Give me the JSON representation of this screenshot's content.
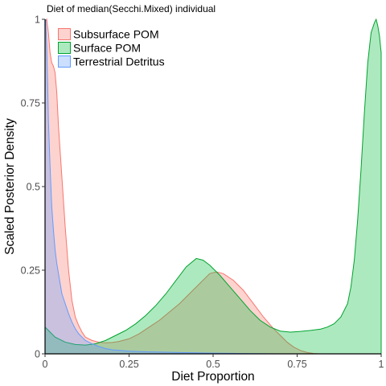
{
  "chart_data": {
    "type": "area",
    "title": "Diet of median(Secchi.Mixed) individual",
    "xlabel": "Diet Proportion",
    "ylabel": "Scaled Posterior Density",
    "xlim": [
      0,
      1
    ],
    "ylim": [
      0,
      1
    ],
    "x_ticks": [
      {
        "value": 0,
        "label": "0"
      },
      {
        "value": 0.25,
        "label": "0.25"
      },
      {
        "value": 0.5,
        "label": "0.5"
      },
      {
        "value": 0.75,
        "label": "0.75"
      },
      {
        "value": 1,
        "label": "1"
      }
    ],
    "y_ticks": [
      {
        "value": 0,
        "label": "0"
      },
      {
        "value": 0.25,
        "label": "0.25"
      },
      {
        "value": 0.5,
        "label": "0.5"
      },
      {
        "value": 0.75,
        "label": "0.75"
      },
      {
        "value": 1,
        "label": "1"
      }
    ],
    "grid": false,
    "legend_position": "top-left",
    "series": [
      {
        "name": "Subsurface POM",
        "fill": "#f8766d",
        "stroke": "#f8766d",
        "points": [
          [
            0,
            0.99
          ],
          [
            0.005,
            1.0
          ],
          [
            0.01,
            0.96
          ],
          [
            0.015,
            0.9
          ],
          [
            0.02,
            0.87
          ],
          [
            0.025,
            0.86
          ],
          [
            0.03,
            0.84
          ],
          [
            0.035,
            0.78
          ],
          [
            0.04,
            0.68
          ],
          [
            0.05,
            0.53
          ],
          [
            0.06,
            0.38
          ],
          [
            0.07,
            0.25
          ],
          [
            0.08,
            0.16
          ],
          [
            0.09,
            0.11
          ],
          [
            0.1,
            0.085
          ],
          [
            0.11,
            0.065
          ],
          [
            0.12,
            0.05
          ],
          [
            0.14,
            0.04
          ],
          [
            0.16,
            0.035
          ],
          [
            0.18,
            0.033
          ],
          [
            0.2,
            0.034
          ],
          [
            0.22,
            0.037
          ],
          [
            0.25,
            0.045
          ],
          [
            0.28,
            0.06
          ],
          [
            0.31,
            0.08
          ],
          [
            0.34,
            0.1
          ],
          [
            0.37,
            0.125
          ],
          [
            0.4,
            0.15
          ],
          [
            0.43,
            0.18
          ],
          [
            0.46,
            0.21
          ],
          [
            0.49,
            0.24
          ],
          [
            0.51,
            0.245
          ],
          [
            0.53,
            0.24
          ],
          [
            0.56,
            0.22
          ],
          [
            0.59,
            0.19
          ],
          [
            0.62,
            0.15
          ],
          [
            0.65,
            0.11
          ],
          [
            0.68,
            0.075
          ],
          [
            0.7,
            0.055
          ],
          [
            0.72,
            0.035
          ],
          [
            0.74,
            0.02
          ],
          [
            0.76,
            0.01
          ],
          [
            0.78,
            0.004
          ],
          [
            0.8,
            0.001
          ],
          [
            0.82,
            0
          ],
          [
            1,
            0
          ]
        ]
      },
      {
        "name": "Surface POM",
        "fill": "#00ba38",
        "stroke": "#00a32e",
        "points": [
          [
            0,
            0.08
          ],
          [
            0.03,
            0.05
          ],
          [
            0.06,
            0.035
          ],
          [
            0.09,
            0.028
          ],
          [
            0.12,
            0.026
          ],
          [
            0.15,
            0.03
          ],
          [
            0.18,
            0.04
          ],
          [
            0.21,
            0.055
          ],
          [
            0.24,
            0.07
          ],
          [
            0.27,
            0.09
          ],
          [
            0.3,
            0.115
          ],
          [
            0.33,
            0.145
          ],
          [
            0.36,
            0.18
          ],
          [
            0.39,
            0.22
          ],
          [
            0.42,
            0.26
          ],
          [
            0.45,
            0.285
          ],
          [
            0.47,
            0.28
          ],
          [
            0.49,
            0.265
          ],
          [
            0.52,
            0.235
          ],
          [
            0.55,
            0.2
          ],
          [
            0.58,
            0.165
          ],
          [
            0.61,
            0.13
          ],
          [
            0.64,
            0.1
          ],
          [
            0.67,
            0.08
          ],
          [
            0.7,
            0.068
          ],
          [
            0.73,
            0.065
          ],
          [
            0.76,
            0.067
          ],
          [
            0.79,
            0.07
          ],
          [
            0.82,
            0.074
          ],
          [
            0.84,
            0.08
          ],
          [
            0.86,
            0.09
          ],
          [
            0.88,
            0.11
          ],
          [
            0.9,
            0.15
          ],
          [
            0.91,
            0.2
          ],
          [
            0.92,
            0.28
          ],
          [
            0.93,
            0.4
          ],
          [
            0.94,
            0.55
          ],
          [
            0.95,
            0.72
          ],
          [
            0.96,
            0.87
          ],
          [
            0.97,
            0.96
          ],
          [
            0.98,
            0.99
          ],
          [
            0.985,
            1.0
          ],
          [
            0.99,
            0.98
          ],
          [
            0.995,
            0.95
          ],
          [
            1.0,
            0.9
          ]
        ]
      },
      {
        "name": "Terrestrial Detritus",
        "fill": "#619cff",
        "stroke": "#619cff",
        "points": [
          [
            0,
            0.98
          ],
          [
            0.002,
            1.0
          ],
          [
            0.005,
            0.92
          ],
          [
            0.008,
            0.8
          ],
          [
            0.01,
            0.7
          ],
          [
            0.015,
            0.56
          ],
          [
            0.02,
            0.44
          ],
          [
            0.025,
            0.37
          ],
          [
            0.03,
            0.31
          ],
          [
            0.035,
            0.27
          ],
          [
            0.04,
            0.24
          ],
          [
            0.045,
            0.21
          ],
          [
            0.05,
            0.18
          ],
          [
            0.06,
            0.15
          ],
          [
            0.07,
            0.12
          ],
          [
            0.08,
            0.095
          ],
          [
            0.09,
            0.075
          ],
          [
            0.1,
            0.06
          ],
          [
            0.11,
            0.05
          ],
          [
            0.12,
            0.04
          ],
          [
            0.14,
            0.03
          ],
          [
            0.16,
            0.022
          ],
          [
            0.18,
            0.016
          ],
          [
            0.2,
            0.012
          ],
          [
            0.25,
            0.008
          ],
          [
            0.3,
            0.006
          ],
          [
            0.35,
            0.005
          ],
          [
            0.4,
            0.004
          ],
          [
            0.45,
            0.003
          ],
          [
            0.5,
            0.002
          ],
          [
            0.6,
            0.001
          ],
          [
            0.7,
            0
          ],
          [
            1,
            0
          ]
        ]
      }
    ]
  }
}
